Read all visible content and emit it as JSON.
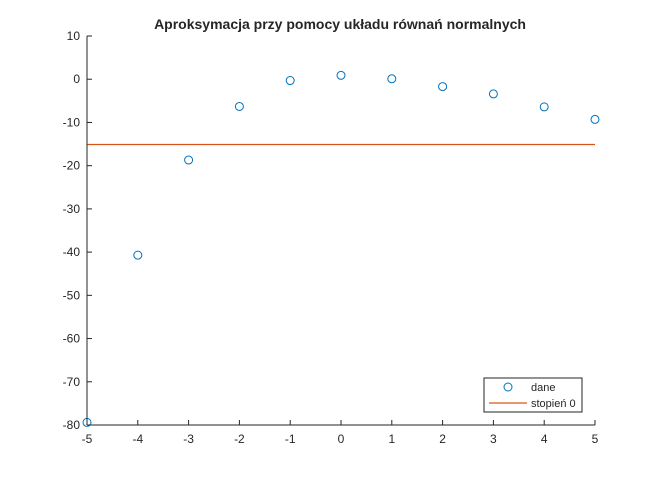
{
  "chart_data": {
    "type": "scatter",
    "title": "Aproksymacja przy pomocy układu równań normalnych",
    "xlabel": "",
    "ylabel": "",
    "xlim": [
      -5,
      5
    ],
    "ylim": [
      -80,
      10
    ],
    "xticks": [
      "-5",
      "-4",
      "-3",
      "-2",
      "-1",
      "0",
      "1",
      "2",
      "3",
      "4",
      "5"
    ],
    "yticks": [
      "10",
      "0",
      "-10",
      "-20",
      "-30",
      "-40",
      "-50",
      "-60",
      "-70",
      "-80"
    ],
    "grid": false,
    "legend_position": "bottom-right",
    "series": [
      {
        "name": "dane",
        "kind": "scatter",
        "marker": "circle",
        "color": "#0072BD",
        "x": [
          -5,
          -4,
          -3,
          -2,
          -1,
          0,
          1,
          2,
          3,
          4,
          5
        ],
        "y": [
          -79.4,
          -40.7,
          -18.7,
          -6.3,
          -0.3,
          0.9,
          0.1,
          -1.7,
          -3.4,
          -6.4,
          -9.3
        ]
      },
      {
        "name": "stopień 0",
        "kind": "line",
        "color": "#D95319",
        "x": [
          -5,
          5
        ],
        "y": [
          -15.1,
          -15.1
        ]
      }
    ]
  }
}
